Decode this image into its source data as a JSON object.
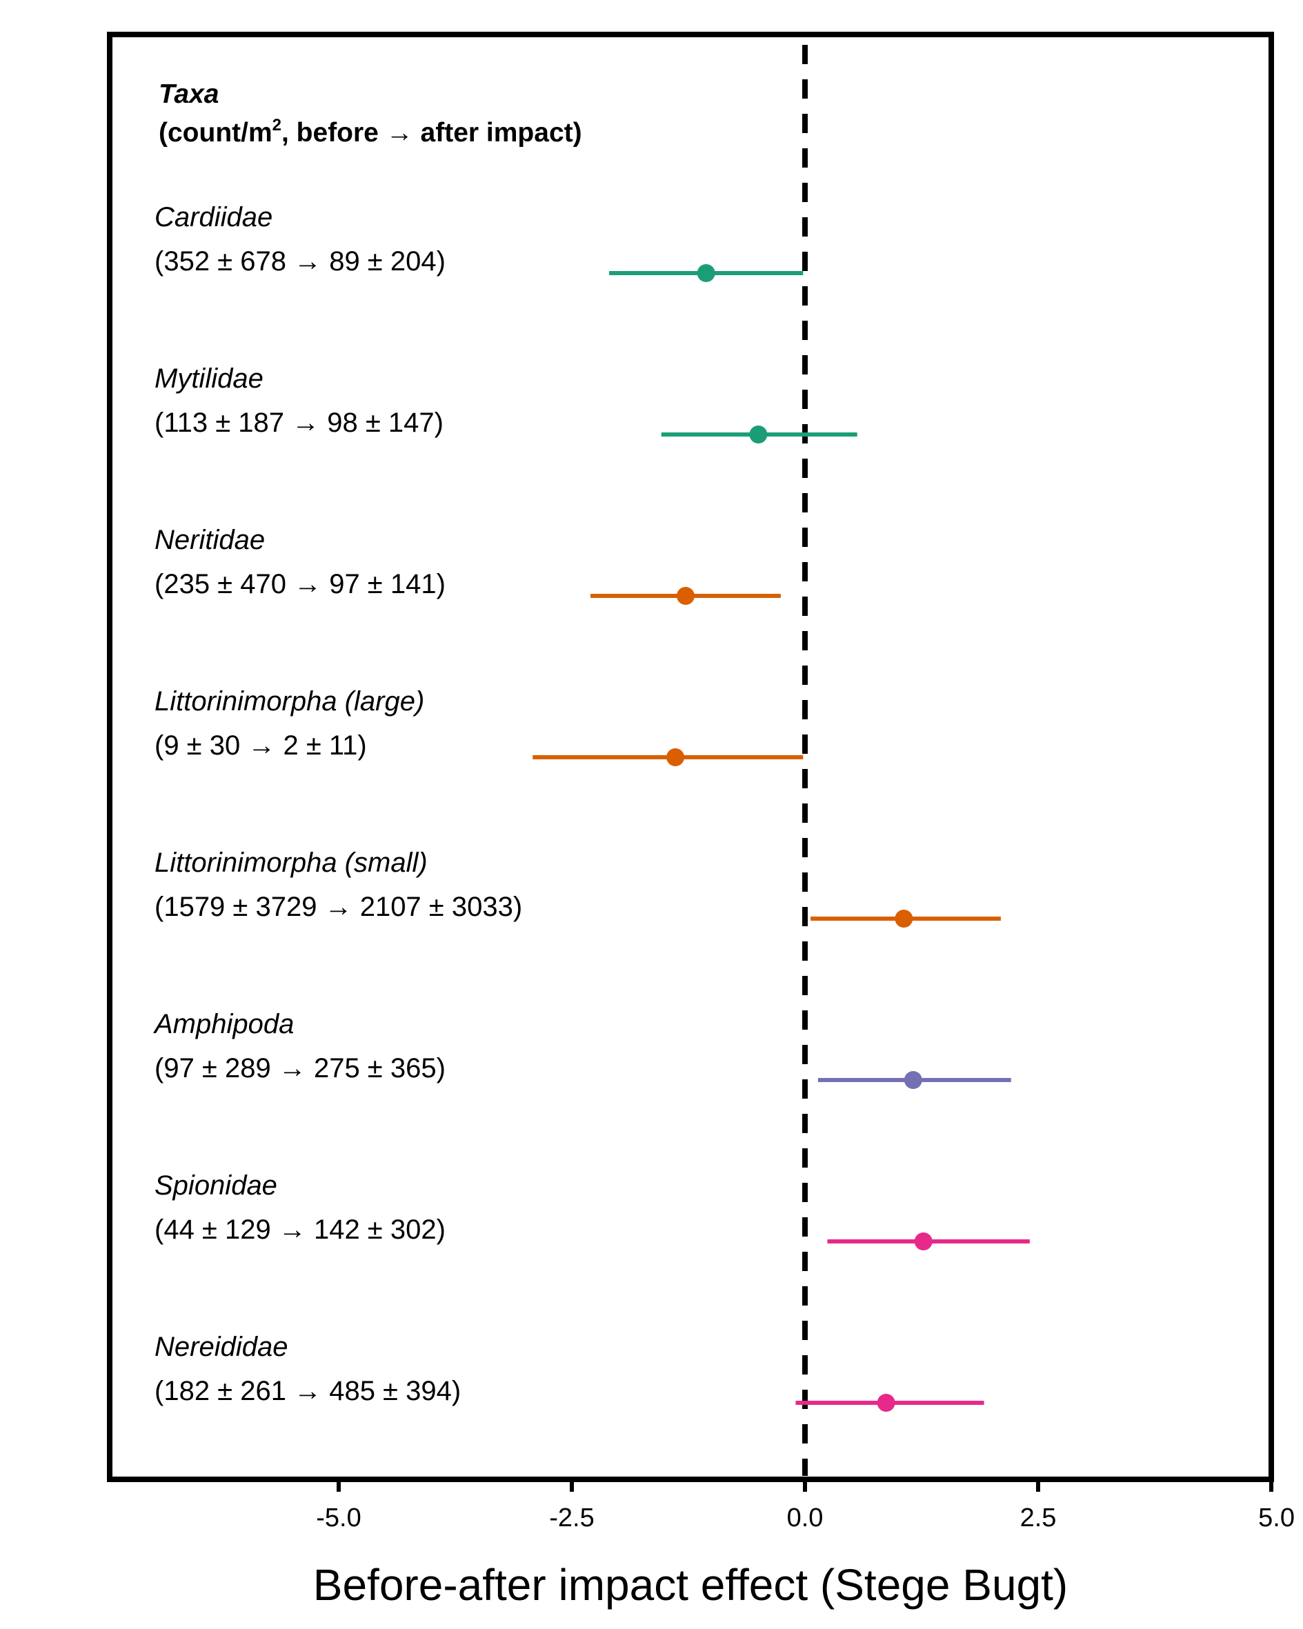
{
  "chart_data": {
    "type": "forest-plot",
    "title": "",
    "xlabel": "Before-after impact effect (Stege Bugt)",
    "ylabel": "",
    "xlim": [
      -7.5,
      5.0
    ],
    "xticks": [
      "-5.0",
      "-2.5",
      "0.0",
      "2.5",
      "5.0"
    ],
    "xtick_values": [
      -5.0,
      -2.5,
      0.0,
      2.5,
      5.0
    ],
    "reference_line": 0.0,
    "grid": false,
    "legend": "none",
    "header": {
      "title": "Taxa",
      "subtitle_prefix": "(count/m",
      "subtitle_sup": "2",
      "subtitle_suffix": ", before → after impact)"
    },
    "series": [
      {
        "taxon": "Cardiidae",
        "stats": "(352 ± 678 → 89 ± 204)",
        "estimate": -1.06,
        "lower": -2.1,
        "upper": -0.02,
        "color": "#1b9e77"
      },
      {
        "taxon": "Mytilidae",
        "stats": "(113 ± 187 → 98 ± 147)",
        "estimate": -0.5,
        "lower": -1.54,
        "upper": 0.56,
        "color": "#1b9e77"
      },
      {
        "taxon": "Neritidae",
        "stats": "(235 ± 470 → 97 ± 141)",
        "estimate": -1.28,
        "lower": -2.3,
        "upper": -0.26,
        "color": "#d95f02"
      },
      {
        "taxon": "Littorinimorpha (large)",
        "stats": "(9 ± 30 → 2 ± 11)",
        "estimate": -1.39,
        "lower": -2.92,
        "upper": -0.02,
        "color": "#d95f02"
      },
      {
        "taxon": "Littorinimorpha (small)",
        "stats": "(1579 ± 3729 → 2107 ± 3033)",
        "estimate": 1.06,
        "lower": 0.06,
        "upper": 2.1,
        "color": "#d95f02"
      },
      {
        "taxon": "Amphipoda",
        "stats": "(97 ± 289 → 275 ± 365)",
        "estimate": 1.16,
        "lower": 0.14,
        "upper": 2.21,
        "color": "#7570b3"
      },
      {
        "taxon": "Spionidae",
        "stats": "(44 ± 129 → 142 ± 302)",
        "estimate": 1.27,
        "lower": 0.24,
        "upper": 2.41,
        "color": "#e7298a"
      },
      {
        "taxon": "Nereididae",
        "stats": "(182 ± 261 → 485 ± 394)",
        "estimate": 0.87,
        "lower": -0.1,
        "upper": 1.92,
        "color": "#e7298a"
      }
    ]
  }
}
